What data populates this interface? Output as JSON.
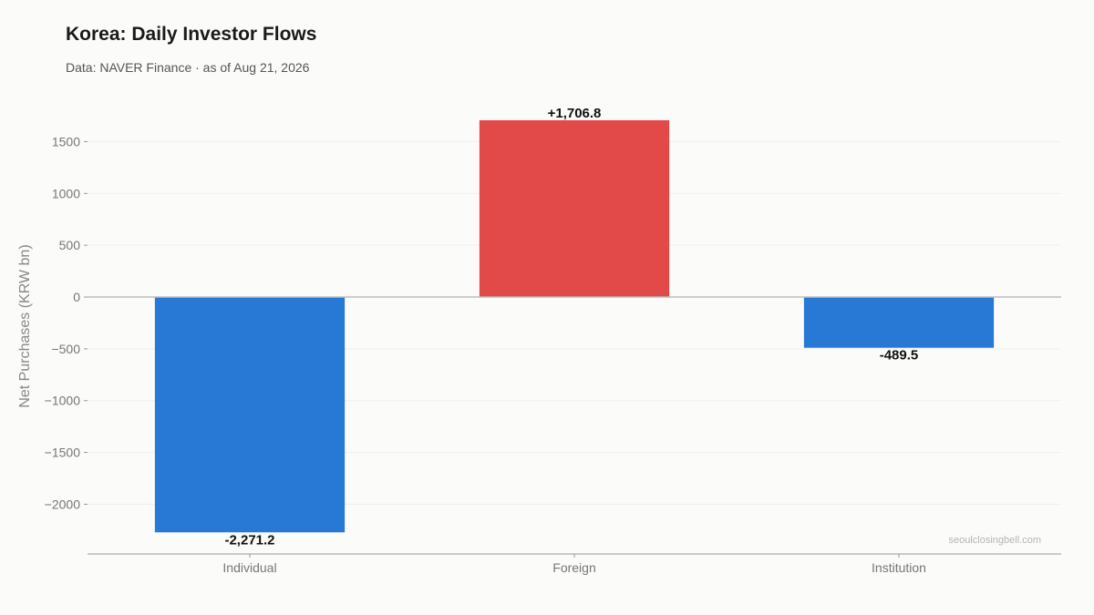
{
  "header": {
    "title": "Korea: Daily Investor Flows",
    "subtitle": "Data: NAVER Finance · as of Aug 21, 2026"
  },
  "watermark": "seoulclosingbell.com",
  "colors": {
    "positive": "#e24a4a",
    "negative": "#2878d6",
    "background": "#fbfbf9",
    "zero_line": "#bdbdbd",
    "axis_line": "#999999",
    "grid": "#efefef"
  },
  "chart_data": {
    "type": "bar",
    "title": "Korea: Daily Investor Flows",
    "subtitle": "Data: NAVER Finance · as of Aug 21, 2026",
    "xlabel": "",
    "ylabel": "Net Purchases (KRW bn)",
    "categories": [
      "Individual",
      "Foreign",
      "Institution"
    ],
    "values": [
      -2271.2,
      1706.8,
      -489.5
    ],
    "value_labels": [
      "-2,271.2",
      "+1,706.8",
      "-489.5"
    ],
    "ylim": [
      -2480,
      1900
    ],
    "yticks": [
      1500,
      1000,
      500,
      0,
      -500,
      -1000,
      -1500,
      -2000
    ],
    "ytick_labels": [
      "1500",
      "1000",
      "500",
      "0",
      "−500",
      "−1000",
      "−1500",
      "−2000"
    ],
    "grid": true,
    "legend": "none"
  }
}
